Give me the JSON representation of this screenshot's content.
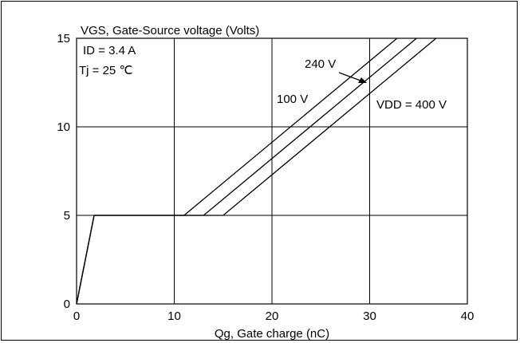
{
  "chart_data": {
    "type": "line",
    "title": "VGS, Gate-Source voltage (Volts)",
    "xlabel": "Qg, Gate charge (nC)",
    "ylabel": "VGS, Gate-Source voltage (Volts)",
    "xlim": [
      0,
      40
    ],
    "ylim": [
      0,
      15
    ],
    "x_ticks": [
      0,
      10,
      20,
      30,
      40
    ],
    "y_ticks": [
      0,
      5,
      10,
      15
    ],
    "grid": true,
    "conditions": [
      "ID = 3.4 A",
      "Tj = 25 ℃"
    ],
    "series": [
      {
        "name": "100 V",
        "x": [
          0,
          1.8,
          11,
          32.8
        ],
        "y": [
          0,
          5,
          5,
          15
        ]
      },
      {
        "name": "240 V",
        "x": [
          0,
          1.8,
          13,
          34.8
        ],
        "y": [
          0,
          5,
          5,
          15
        ]
      },
      {
        "name": "VDD = 400 V",
        "x": [
          0,
          1.8,
          15,
          36.8
        ],
        "y": [
          0,
          5,
          5,
          15
        ]
      }
    ]
  }
}
